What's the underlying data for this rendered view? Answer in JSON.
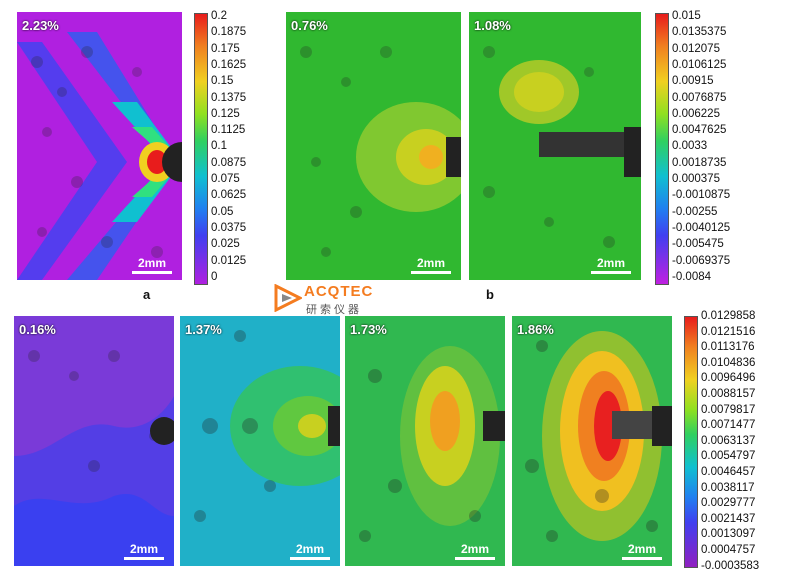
{
  "panels_top": [
    {
      "id": "a1",
      "strain": "2.23%",
      "scale": "2mm",
      "palette": "a"
    },
    {
      "id": "b1",
      "strain": "0.76%",
      "scale": "2mm",
      "palette": "b1"
    },
    {
      "id": "b2",
      "strain": "1.08%",
      "scale": "2mm",
      "palette": "b2"
    }
  ],
  "panels_bottom": [
    {
      "id": "c1",
      "strain": "0.16%",
      "scale": "2mm",
      "palette": "c1"
    },
    {
      "id": "c2",
      "strain": "1.37%",
      "scale": "2mm",
      "palette": "c2"
    },
    {
      "id": "c3",
      "strain": "1.73%",
      "scale": "2mm",
      "palette": "c3"
    },
    {
      "id": "c4",
      "strain": "1.86%",
      "scale": "2mm",
      "palette": "c4"
    }
  ],
  "sublabels": {
    "a": "a",
    "b": "b"
  },
  "colorbar_a": [
    "0.2",
    "0.1875",
    "0.175",
    "0.1625",
    "0.15",
    "0.1375",
    "0.125",
    "0.1125",
    "0.1",
    "0.0875",
    "0.075",
    "0.0625",
    "0.05",
    "0.0375",
    "0.025",
    "0.0125",
    "0"
  ],
  "colorbar_b": [
    "0.015",
    "0.0135375",
    "0.012075",
    "0.0106125",
    "0.00915",
    "0.0076875",
    "0.006225",
    "0.0047625",
    "0.0033",
    "0.0018735",
    "0.000375",
    "-0.0010875",
    "-0.00255",
    "-0.0040125",
    "-0.005475",
    "-0.0069375",
    "-0.0084"
  ],
  "colorbar_c": [
    "0.0129858",
    "0.0121516",
    "0.0113176",
    "0.0104836",
    "0.0096496",
    "0.0088157",
    "0.0079817",
    "0.0071477",
    "0.0063137",
    "0.0054797",
    "0.0046457",
    "0.0038117",
    "0.0029777",
    "0.0021437",
    "0.0013097",
    "0.0004757",
    "-0.0003583"
  ],
  "logo": {
    "name": "ACQTEC",
    "sub": "研索仪器"
  },
  "colors": {
    "accent": "#f47c20"
  }
}
